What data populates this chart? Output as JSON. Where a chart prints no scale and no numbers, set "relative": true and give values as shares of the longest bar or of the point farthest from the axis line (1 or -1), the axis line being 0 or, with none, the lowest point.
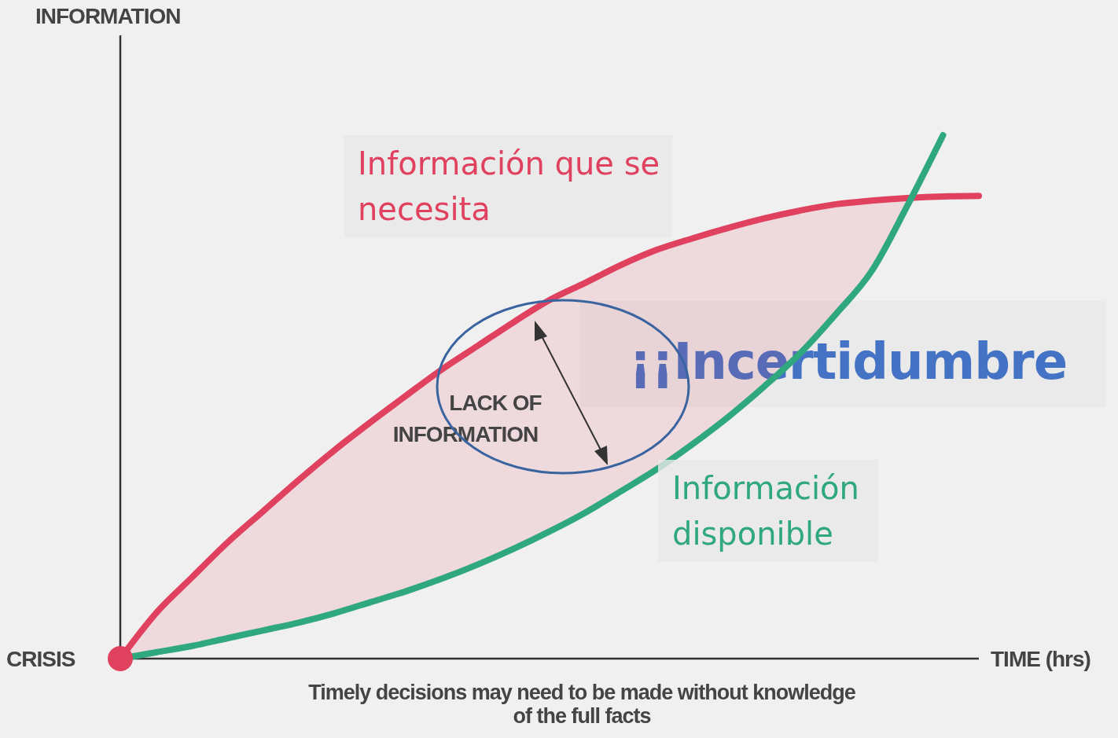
{
  "chart_data": {
    "type": "line",
    "relative": true,
    "xlabel": "TIME (hrs)",
    "ylabel": "INFORMATION",
    "categories": [
      null,
      null,
      null,
      null,
      null,
      null,
      null,
      null,
      null,
      null,
      null,
      null,
      null,
      null,
      null,
      null,
      null,
      null,
      null,
      null,
      null,
      null,
      null,
      null,
      null
    ],
    "series": [
      {
        "name": "Información que se necesita",
        "color": "#e0415f",
        "values": [
          0,
          0.087,
          0.155,
          0.222,
          0.282,
          0.342,
          0.399,
          0.452,
          0.503,
          0.553,
          0.598,
          0.643,
          0.685,
          0.718,
          0.752,
          0.781,
          0.803,
          0.823,
          0.841,
          0.856,
          0.868,
          0.875,
          0.88,
          0.883,
          0.884
        ],
        "lower": [
          0,
          0.012,
          0.024,
          0.039,
          0.054,
          0.069,
          0.087,
          0.108,
          0.129,
          0.153,
          0.18,
          0.21,
          0.243,
          0.279,
          0.32,
          0.362,
          0.41,
          0.462,
          0.52,
          0.583,
          0.658,
          0.74,
          0.865,
          null,
          null
        ],
        "upper": [
          0,
          0.087,
          0.155,
          0.222,
          0.282,
          0.342,
          0.399,
          0.452,
          0.503,
          0.553,
          0.598,
          0.643,
          0.685,
          0.718,
          0.752,
          0.781,
          0.803,
          0.823,
          0.841,
          0.856,
          0.868,
          0.875,
          0.88,
          null,
          null
        ]
      },
      {
        "name": "Información disponible",
        "color": "#2fa77f",
        "values": [
          0,
          0.012,
          0.024,
          0.039,
          0.054,
          0.069,
          0.087,
          0.108,
          0.129,
          0.153,
          0.18,
          0.21,
          0.243,
          0.279,
          0.32,
          0.362,
          0.41,
          0.462,
          0.52,
          0.583,
          0.658,
          0.74,
          0.865,
          1,
          null
        ]
      }
    ],
    "annotations": [
      "CRISIS",
      "Timely decisions may need to be made without knowledge of the full facts",
      "LACK OF INFORMATION",
      "¡¡Incertidumbre"
    ]
  }
}
